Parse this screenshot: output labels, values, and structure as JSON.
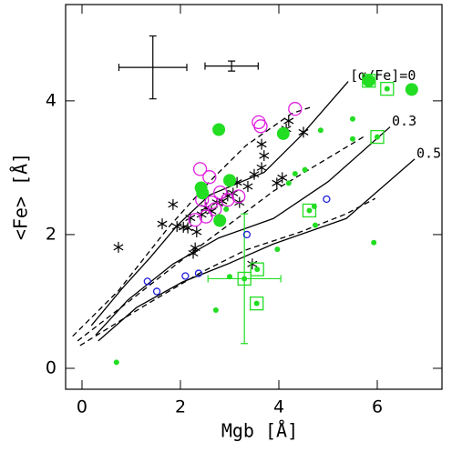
{
  "chart_data": {
    "type": "scatter",
    "xlabel": "Mgb [Å]",
    "ylabel": "<Fe> [Å]",
    "xlim": [
      -0.333,
      7.315
    ],
    "ylim": [
      -0.313,
      5.44
    ],
    "xticks": [
      0,
      2,
      4,
      6
    ],
    "yticks": [
      0,
      2,
      4
    ],
    "lines": [
      {
        "label": "[α/Fe]=0",
        "dash": false,
        "color": "#000000",
        "x": [
          0.19,
          0.8,
          1.39,
          1.94,
          2.59,
          3.7,
          4.44,
          5.41
        ],
        "y": [
          0.64,
          1.18,
          1.66,
          2.14,
          2.59,
          2.93,
          3.47,
          4.29
        ]
      },
      {
        "label": "0.3",
        "dash": false,
        "color": "#000000",
        "x": [
          0.28,
          0.93,
          1.85,
          2.78,
          3.89,
          5.0,
          6.26
        ],
        "y": [
          0.5,
          1.02,
          1.56,
          1.95,
          2.24,
          2.79,
          3.61
        ]
      },
      {
        "label": "0.5",
        "dash": false,
        "color": "#000000",
        "x": [
          0.33,
          1.11,
          2.04,
          2.96,
          3.89,
          5.37,
          6.76
        ],
        "y": [
          0.41,
          0.91,
          1.29,
          1.56,
          1.86,
          2.24,
          3.13
        ]
      },
      {
        "dash": true,
        "color": "#000000",
        "x": [
          -0.19,
          0.74,
          1.76,
          2.59,
          3.33,
          4.26,
          4.63
        ],
        "y": [
          0.48,
          1.16,
          2.11,
          2.79,
          3.33,
          3.81,
          3.9
        ]
      },
      {
        "dash": true,
        "color": "#000000",
        "x": [
          -0.09,
          1.11,
          2.22,
          3.15,
          3.89,
          4.81,
          5.74
        ],
        "y": [
          0.41,
          1.09,
          1.73,
          2.24,
          2.65,
          3.06,
          3.47
        ]
      },
      {
        "dash": true,
        "color": "#000000",
        "x": [
          -0.04,
          1.3,
          2.41,
          3.33,
          4.44,
          5.37,
          5.96
        ],
        "y": [
          0.34,
          0.95,
          1.43,
          1.77,
          2.04,
          2.31,
          2.54
        ]
      }
    ],
    "series": [
      {
        "marker": "asterisk",
        "color": "#000000",
        "x": [
          0.74,
          1.63,
          1.85,
          1.93,
          2.06,
          2.15,
          2.2,
          2.26,
          2.3,
          2.33,
          2.43,
          2.52,
          2.63,
          2.74,
          2.85,
          2.96,
          3.07,
          3.15,
          3.2,
          3.37,
          3.5,
          3.65,
          3.7,
          3.65,
          3.96,
          4.07,
          4.15,
          4.2,
          4.5,
          3.46
        ],
        "y": [
          1.81,
          2.16,
          2.45,
          2.12,
          2.11,
          2.1,
          2.25,
          1.72,
          1.8,
          2.04,
          2.3,
          2.4,
          2.35,
          2.48,
          2.5,
          2.58,
          2.62,
          2.78,
          2.48,
          2.72,
          2.9,
          3.0,
          3.18,
          3.35,
          2.77,
          2.85,
          3.58,
          3.7,
          3.53,
          1.56
        ]
      },
      {
        "marker": "open-circle",
        "size": "large",
        "color": "#e020e0",
        "x": [
          2.4,
          2.59,
          2.44,
          2.63,
          2.81,
          2.96,
          3.18,
          2.3,
          3.59,
          3.63,
          4.33,
          2.7,
          2.52
        ],
        "y": [
          2.98,
          2.86,
          2.52,
          2.48,
          2.63,
          2.52,
          2.57,
          2.22,
          3.68,
          3.62,
          3.88,
          2.38,
          2.27
        ]
      },
      {
        "marker": "open-circle",
        "size": "small",
        "color": "#2020dd",
        "x": [
          1.33,
          1.52,
          2.1,
          2.37,
          3.35,
          4.97
        ],
        "y": [
          1.3,
          1.15,
          1.38,
          1.42,
          2.0,
          2.53
        ]
      },
      {
        "marker": "filled-circle",
        "size": "large",
        "color": "#22dd22",
        "x": [
          2.78,
          4.09,
          3.0,
          2.42,
          2.45,
          2.8,
          6.7,
          5.83
        ],
        "y": [
          3.57,
          3.51,
          2.81,
          2.7,
          2.62,
          2.21,
          4.17,
          4.3
        ]
      },
      {
        "marker": "filled-circle",
        "size": "small",
        "color": "#22dd22",
        "x": [
          0.7,
          2.93,
          2.78,
          4.2,
          4.33,
          4.53,
          4.85,
          5.5,
          5.5,
          4.72,
          4.74,
          3.97,
          5.93,
          3.0,
          2.72
        ],
        "y": [
          0.09,
          2.38,
          2.27,
          2.77,
          2.91,
          2.97,
          3.56,
          3.73,
          3.43,
          2.42,
          2.14,
          1.78,
          1.88,
          1.37,
          0.87
        ]
      },
      {
        "marker": "square",
        "color": "#22dd22",
        "x": [
          5.83,
          6.2,
          6.0,
          4.62,
          3.3,
          3.56,
          3.55
        ],
        "y": [
          4.3,
          4.18,
          3.46,
          2.36,
          1.34,
          1.48,
          0.97
        ]
      }
    ],
    "errorbars": [
      {
        "color": "#000000",
        "x": 1.44,
        "y": 4.5,
        "xerr": 0.69,
        "yerr": 0.47
      },
      {
        "color": "#000000",
        "x": 3.04,
        "y": 4.52,
        "xerr": 0.54,
        "yerr": 0.075
      },
      {
        "color": "#22dd22",
        "x": 3.3,
        "y": 1.34,
        "xerr": 0.74,
        "yerr": 0.97
      }
    ]
  }
}
